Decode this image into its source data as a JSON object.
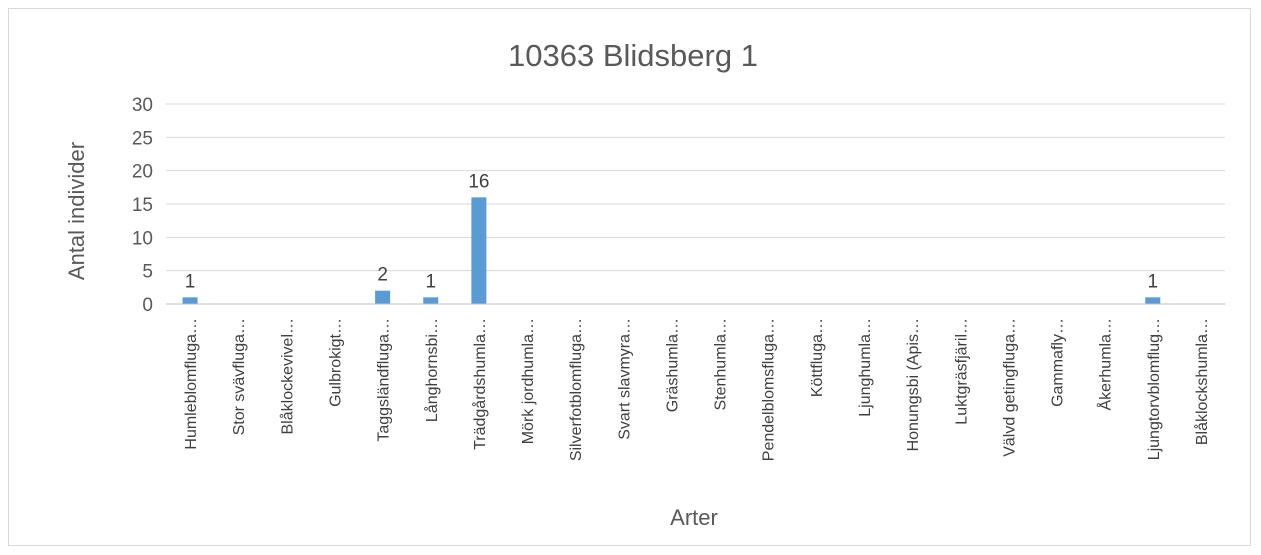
{
  "chart_data": {
    "type": "bar",
    "title": "10363 Blidsberg 1",
    "xlabel": "Arter",
    "ylabel": "Antal individer",
    "ylim": [
      0,
      30
    ],
    "yticks": [
      0,
      5,
      10,
      15,
      20,
      25,
      30
    ],
    "grid": true,
    "legend": "none",
    "color": "#5b9bd5",
    "categories": [
      "Humleblomfluga…",
      "Stor svävfluga…",
      "Blåklockevivel…",
      "Gulbrokigt…",
      "Taggsländfluga…",
      "Långhornsbi…",
      "Trädgårdshumla…",
      "Mörk jordhumla…",
      "Silverfotblomfluga…",
      "Svart slavmyra…",
      "Gräshumla…",
      "Stenhumla…",
      "Pendelblomsfluga…",
      "Köttfluga…",
      "Ljunghumla…",
      "Honungsbi (Apis…",
      "Luktgräsfjäril…",
      "Välvd getingfluga…",
      "Gammafly…",
      "Åkerhumla…",
      "Ljungtorvblomflug…",
      "Blåklockshumla…"
    ],
    "values": [
      1,
      0,
      0,
      0,
      2,
      1,
      16,
      0,
      0,
      0,
      0,
      0,
      0,
      0,
      0,
      0,
      0,
      0,
      0,
      0,
      1,
      0
    ],
    "data_labels": [
      "1",
      "",
      "",
      "",
      "2",
      "1",
      "16",
      "",
      "",
      "",
      "",
      "",
      "",
      "",
      "",
      "",
      "",
      "",
      "",
      "",
      "1",
      ""
    ]
  }
}
